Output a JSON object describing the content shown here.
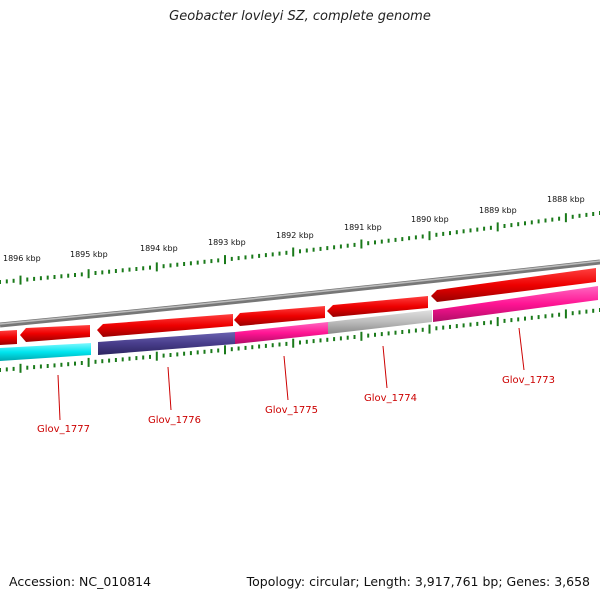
{
  "title": "Geobacter lovleyi SZ, complete genome",
  "footer": {
    "accession": "Accession: NC_010814",
    "summary": "Topology: circular; Length: 3,917,761 bp; Genes: 3,658"
  },
  "colors": {
    "background": "#ffffff",
    "backbone": "#888888",
    "tick": "#1a7a1a",
    "forward_gene": "#ee0000",
    "label": "#cc0000",
    "cyan": "#00e5ee",
    "dark_blue": "#483d8b",
    "magenta": "#ff1493",
    "gray": "#bbbbbb"
  },
  "scale_labels": [
    "1896 kbp",
    "1895 kbp",
    "1894 kbp",
    "1893 kbp",
    "1892 kbp",
    "1891 kbp",
    "1890 kbp",
    "1889 kbp",
    "1888 kbp"
  ],
  "genes": [
    {
      "name": "Glov_1777",
      "color": "cyan"
    },
    {
      "name": "Glov_1776",
      "color": "dark_blue"
    },
    {
      "name": "Glov_1775",
      "color": "magenta"
    },
    {
      "name": "Glov_1774",
      "color": "gray"
    },
    {
      "name": "Glov_1773",
      "color": "magenta"
    }
  ]
}
